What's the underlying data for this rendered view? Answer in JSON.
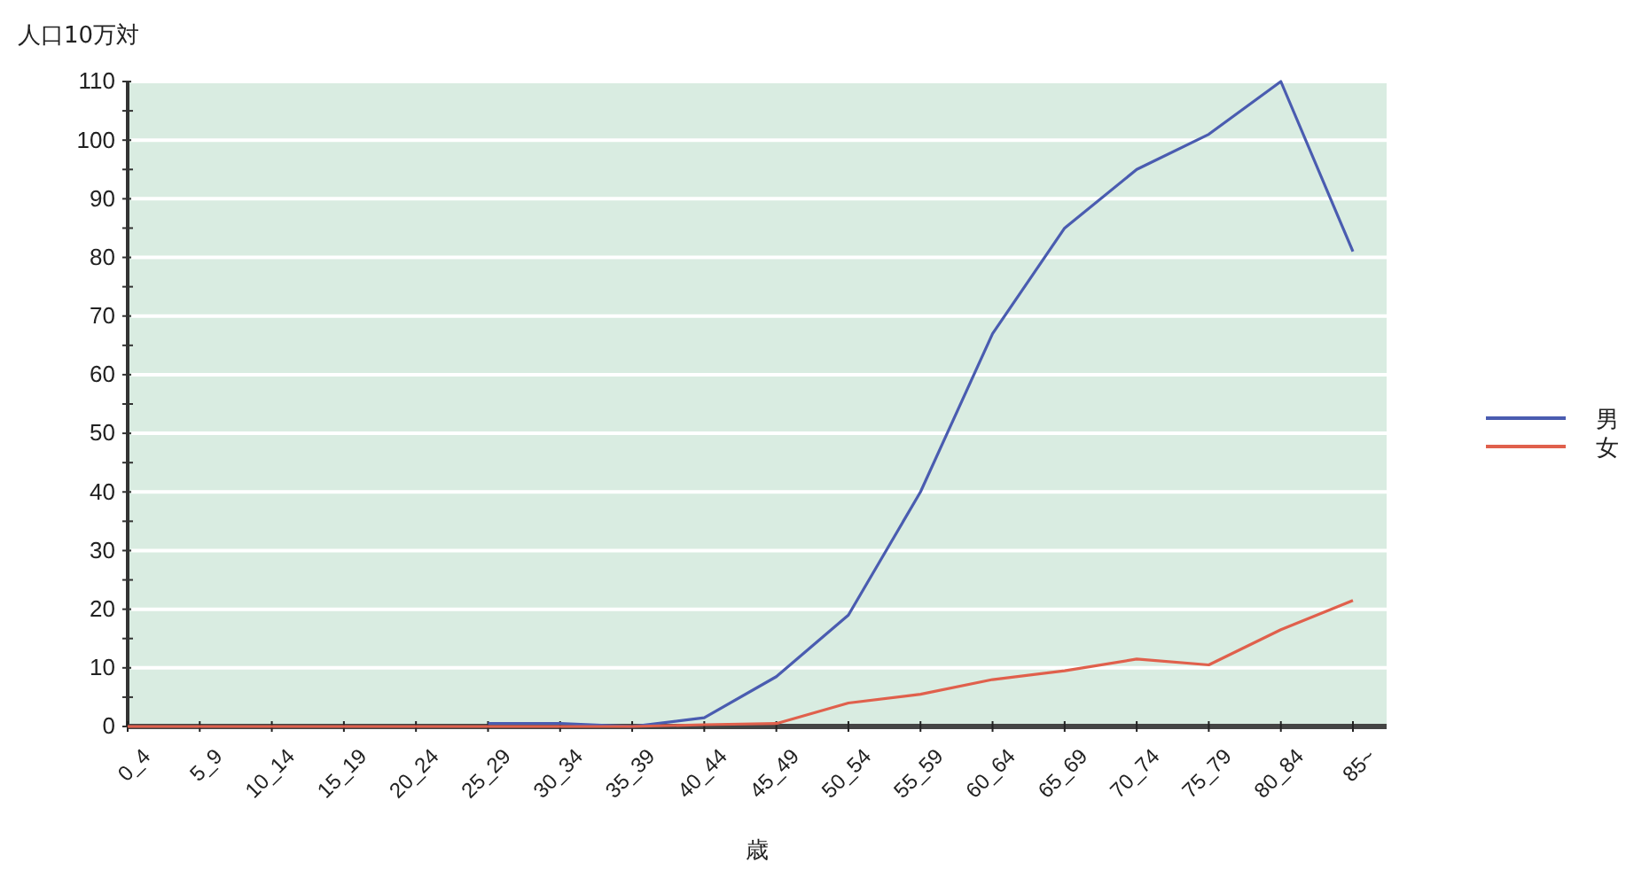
{
  "chart_data": {
    "type": "line",
    "ylabel": "人口10万対",
    "xlabel": "歳",
    "categories": [
      "0_4",
      "5_9",
      "10_14",
      "15_19",
      "20_24",
      "25_29",
      "30_34",
      "35_39",
      "40_44",
      "45_49",
      "50_54",
      "55_59",
      "60_64",
      "65_69",
      "70_74",
      "75_79",
      "80_84",
      "85~"
    ],
    "series": [
      {
        "name": "男",
        "color": "#4a5cb0",
        "values": [
          null,
          null,
          null,
          null,
          null,
          0.5,
          0.5,
          0,
          1.5,
          8.5,
          19,
          40,
          67,
          85,
          95,
          101,
          110,
          81
        ]
      },
      {
        "name": "女",
        "color": "#e0604c",
        "values": [
          0,
          0,
          0,
          0,
          0,
          0,
          0,
          0,
          0.3,
          0.5,
          4,
          5.5,
          8,
          9.5,
          11.5,
          10.5,
          16.5,
          21.5
        ]
      }
    ],
    "ylim": [
      0,
      110
    ],
    "yticks": [
      0,
      {
        "value": 5,
        "label": null
      },
      10,
      {
        "value": 15,
        "label": null
      },
      20,
      {
        "value": 25,
        "label": null
      },
      30,
      {
        "value": 35,
        "label": null
      },
      40,
      {
        "value": 45,
        "label": null
      },
      50,
      {
        "value": 55,
        "label": null
      },
      60,
      {
        "value": 65,
        "label": null
      },
      70,
      {
        "value": 75,
        "label": null
      },
      80,
      {
        "value": 85,
        "label": null
      },
      90,
      {
        "value": 95,
        "label": null
      },
      100,
      {
        "value": 105,
        "label": null
      },
      110
    ],
    "grid": "y",
    "legend": "right",
    "marker": "none",
    "line_style": "solid"
  }
}
